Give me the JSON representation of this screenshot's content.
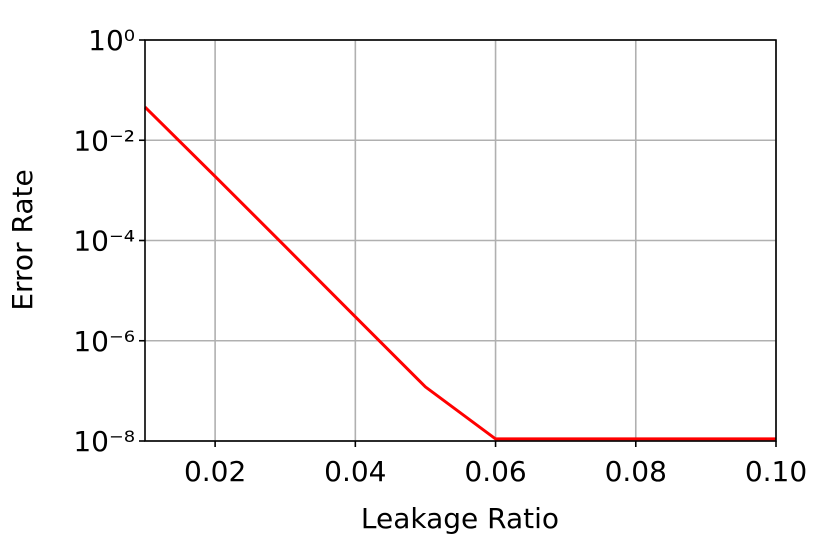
{
  "chart_data": {
    "type": "line",
    "xlabel": "Leakage Ratio",
    "ylabel": "Error Rate",
    "x": [
      0.01,
      0.02,
      0.03,
      0.04,
      0.05,
      0.06,
      0.07,
      0.08,
      0.09,
      0.1
    ],
    "series": [
      {
        "color": "#ff0000",
        "values": [
          0.046,
          0.0019,
          7.6e-05,
          3e-06,
          1.2e-07,
          1.1e-08,
          1.1e-08,
          1.1e-08,
          1.1e-08,
          1.1e-08
        ]
      }
    ],
    "xlim": [
      0.01,
      0.1
    ],
    "xticks": [
      0.02,
      0.04,
      0.06,
      0.08,
      {
        "value": 0.1,
        "label": "0.10"
      }
    ],
    "ylim": [
      1e-08,
      1
    ],
    "yscale": "log",
    "yticks": [
      {
        "value": 1e-08,
        "label": "10⁻⁸"
      },
      {
        "value": 1e-06,
        "label": "10⁻⁶"
      },
      {
        "value": 0.0001,
        "label": "10⁻⁴"
      },
      {
        "value": 0.01,
        "label": "10⁻²"
      },
      {
        "value": 1,
        "label": "10⁰"
      }
    ],
    "grid": true
  }
}
